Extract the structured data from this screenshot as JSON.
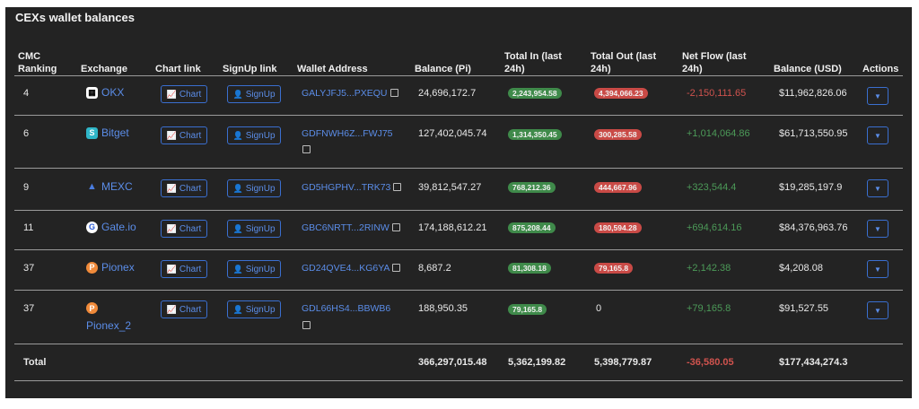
{
  "title": "CEXs wallet balances",
  "headers": {
    "rank": "CMC\nRanking",
    "exchange": "Exchange",
    "chart": "Chart link",
    "signup": "SignUp link",
    "wallet": "Wallet Address",
    "balance_pi": "Balance (Pi)",
    "total_in": "Total In (last\n24h)",
    "total_out": "Total Out (last\n24h)",
    "net_flow": "Net Flow (last\n24h)",
    "balance_usd": "Balance (USD)",
    "actions": "Actions"
  },
  "buttons": {
    "chart": "Chart",
    "signup": "SignUp"
  },
  "rows": [
    {
      "rank": "4",
      "exchange": "OKX",
      "wallet": "GALYJFJ5...PXEQU",
      "balance_pi": "24,696,172.7",
      "total_in": "2,243,954.58",
      "total_out": "4,394,066.23",
      "net_flow": "-2,150,111.65",
      "balance_usd": "$11,962,826.06"
    },
    {
      "rank": "6",
      "exchange": "Bitget",
      "wallet": "GDFNWH6Z...FWJ75",
      "balance_pi": "127,402,045.74",
      "total_in": "1,314,350.45",
      "total_out": "300,285.58",
      "net_flow": "+1,014,064.86",
      "balance_usd": "$61,713,550.95"
    },
    {
      "rank": "9",
      "exchange": "MEXC",
      "wallet": "GD5HGPHV...TRK73",
      "balance_pi": "39,812,547.27",
      "total_in": "768,212.36",
      "total_out": "444,667.96",
      "net_flow": "+323,544.4",
      "balance_usd": "$19,285,197.9"
    },
    {
      "rank": "11",
      "exchange": "Gate.io",
      "wallet": "GBC6NRTT...2RINW",
      "balance_pi": "174,188,612.21",
      "total_in": "875,208.44",
      "total_out": "180,594.28",
      "net_flow": "+694,614.16",
      "balance_usd": "$84,376,963.76"
    },
    {
      "rank": "37",
      "exchange": "Pionex",
      "wallet": "GD24QVE4...KG6YA",
      "balance_pi": "8,687.2",
      "total_in": "81,308.18",
      "total_out": "79,165.8",
      "net_flow": "+2,142.38",
      "balance_usd": "$4,208.08"
    },
    {
      "rank": "37",
      "exchange": "Pionex_2",
      "wallet": "GDL66HS4...BBWB6",
      "balance_pi": "188,950.35",
      "total_in": "79,165.8",
      "total_out": "0",
      "net_flow": "+79,165.8",
      "balance_usd": "$91,527.55"
    }
  ],
  "total": {
    "label": "Total",
    "balance_pi": "366,297,015.48",
    "total_in": "5,362,199.82",
    "total_out": "5,398,779.87",
    "net_flow": "-36,580.05",
    "balance_usd": "$177,434,274.3"
  },
  "colors": {
    "background": "#232323",
    "link": "#5b8de8",
    "positive": "#4c9a58",
    "negative": "#d0534e"
  }
}
